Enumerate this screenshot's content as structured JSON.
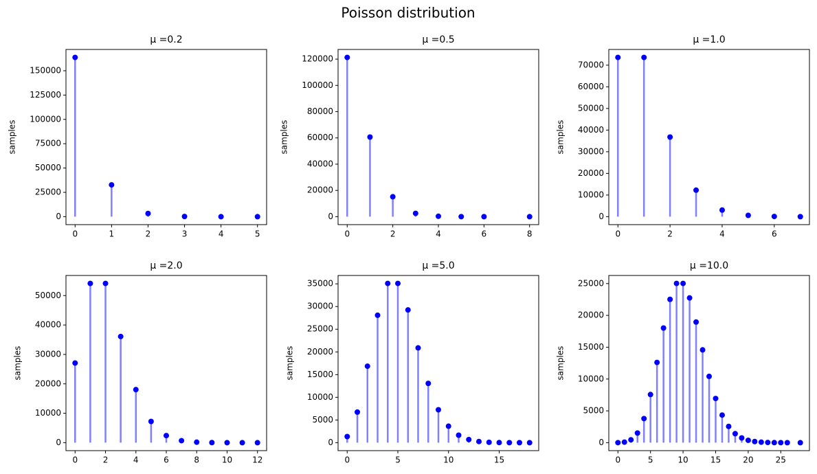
{
  "title": "Poisson distribution",
  "chart_data": [
    {
      "type": "stem",
      "title": "μ =0.2",
      "ylabel": "samples",
      "color": "#0000ff",
      "stem_color": "#8080ff",
      "x": [
        0,
        1,
        2,
        3,
        4,
        5
      ],
      "values": [
        163700,
        32700,
        3300,
        200,
        10,
        1
      ],
      "xlim": [
        -0.25,
        5.25
      ],
      "xticks": [
        0,
        1,
        2,
        3,
        4,
        5
      ],
      "ylim": [
        -8185,
        171885
      ],
      "yticks": [
        0,
        25000,
        50000,
        75000,
        100000,
        125000,
        150000
      ]
    },
    {
      "type": "stem",
      "title": "μ =0.5",
      "ylabel": "samples",
      "color": "#0000ff",
      "stem_color": "#8080ff",
      "x": [
        0,
        1,
        2,
        3,
        4,
        5,
        6,
        8
      ],
      "values": [
        121300,
        60650,
        15160,
        2530,
        320,
        30,
        3,
        1
      ],
      "xlim": [
        -0.4,
        8.4
      ],
      "xticks": [
        0,
        2,
        4,
        6,
        8
      ],
      "ylim": [
        -6065,
        127365
      ],
      "yticks": [
        0,
        20000,
        40000,
        60000,
        80000,
        100000,
        120000
      ]
    },
    {
      "type": "stem",
      "title": "μ =1.0",
      "ylabel": "samples",
      "color": "#0000ff",
      "stem_color": "#8080ff",
      "x": [
        0,
        1,
        2,
        3,
        4,
        5,
        6,
        7
      ],
      "values": [
        73580,
        73580,
        36790,
        12260,
        3070,
        610,
        100,
        15
      ],
      "xlim": [
        -0.35,
        7.35
      ],
      "xticks": [
        0,
        2,
        4,
        6
      ],
      "ylim": [
        -3679,
        77259
      ],
      "yticks": [
        0,
        10000,
        20000,
        30000,
        40000,
        50000,
        60000,
        70000
      ]
    },
    {
      "type": "stem",
      "title": "μ =2.0",
      "ylabel": "samples",
      "color": "#0000ff",
      "stem_color": "#8080ff",
      "x": [
        0,
        1,
        2,
        3,
        4,
        5,
        6,
        7,
        8,
        9,
        10,
        11,
        12
      ],
      "values": [
        27070,
        54130,
        54130,
        36090,
        18040,
        7220,
        2410,
        690,
        170,
        40,
        8,
        2,
        1
      ],
      "xlim": [
        -0.6,
        12.6
      ],
      "xticks": [
        0,
        2,
        4,
        6,
        8,
        10,
        12
      ],
      "ylim": [
        -2706.5,
        56836.5
      ],
      "yticks": [
        0,
        10000,
        20000,
        30000,
        40000,
        50000
      ]
    },
    {
      "type": "stem",
      "title": "μ =5.0",
      "ylabel": "samples",
      "color": "#0000ff",
      "stem_color": "#8080ff",
      "x": [
        0,
        1,
        2,
        3,
        4,
        5,
        6,
        7,
        8,
        9,
        10,
        11,
        12,
        13,
        14,
        15,
        16,
        17,
        18
      ],
      "values": [
        1350,
        6740,
        16850,
        28080,
        35090,
        35090,
        29250,
        20890,
        13060,
        7250,
        3630,
        1650,
        690,
        260,
        90,
        30,
        10,
        3,
        1
      ],
      "xlim": [
        -0.9,
        18.9
      ],
      "xticks": [
        0,
        5,
        10,
        15
      ],
      "ylim": [
        -1754.5,
        36844.5
      ],
      "yticks": [
        0,
        5000,
        10000,
        15000,
        20000,
        25000,
        30000,
        35000
      ]
    },
    {
      "type": "stem",
      "title": "μ =10.0",
      "ylabel": "samples",
      "color": "#0000ff",
      "stem_color": "#8080ff",
      "x": [
        0,
        1,
        2,
        3,
        4,
        5,
        6,
        7,
        8,
        9,
        10,
        11,
        12,
        13,
        14,
        15,
        16,
        17,
        18,
        19,
        20,
        21,
        22,
        23,
        24,
        25,
        26,
        28
      ],
      "values": [
        9,
        91,
        454,
        1513,
        3783,
        7567,
        12611,
        18016,
        22520,
        25022,
        25022,
        22747,
        18956,
        14582,
        10416,
        6944,
        4340,
        2553,
        1418,
        746,
        373,
        178,
        81,
        35,
        15,
        6,
        2,
        1
      ],
      "xlim": [
        -1.4,
        29.4
      ],
      "xticks": [
        0,
        5,
        10,
        15,
        20,
        25
      ],
      "ylim": [
        -1251,
        26271
      ],
      "yticks": [
        0,
        5000,
        10000,
        15000,
        20000,
        25000
      ]
    }
  ]
}
